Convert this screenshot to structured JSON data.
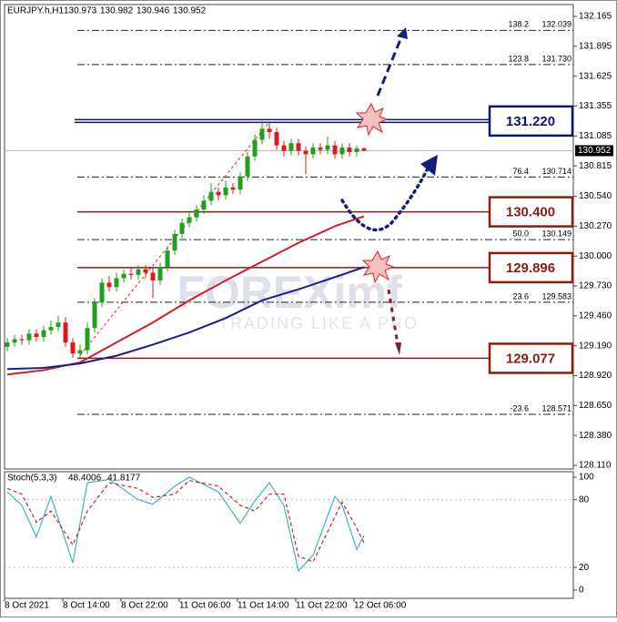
{
  "chart_data": [
    {
      "type": "candlestick",
      "title": "EURJPY.h,H1",
      "categories": [
        "8 Oct 2021",
        null,
        null,
        null,
        null,
        null,
        null,
        null,
        "8 Oct 14:00",
        null,
        null,
        null,
        null,
        null,
        null,
        null,
        "8 Oct 22:00",
        null,
        null,
        null,
        null,
        null,
        null,
        null,
        "11 Oct 06:00",
        null,
        null,
        null,
        null,
        null,
        null,
        null,
        "11 Oct 14:00",
        null,
        null,
        null,
        null,
        null,
        null,
        null,
        "11 Oct 22:00",
        null,
        null,
        null,
        null,
        null,
        null,
        null,
        "12 Oct 06:00",
        null
      ],
      "open": [
        129.18,
        129.22,
        129.25,
        129.24,
        129.3,
        129.27,
        129.33,
        129.36,
        129.4,
        129.22,
        129.12,
        129.15,
        129.35,
        129.58,
        129.76,
        129.72,
        129.8,
        129.84,
        129.83,
        129.88,
        129.85,
        129.78,
        129.9,
        130.05,
        130.2,
        130.3,
        130.35,
        130.42,
        130.5,
        130.58,
        130.55,
        130.62,
        130.6,
        130.72,
        130.9,
        131.05,
        131.15,
        131.12,
        131.0,
        130.95,
        131.02,
        130.95,
        130.92,
        130.98,
        130.96,
        131.0,
        130.92,
        130.98,
        130.94,
        130.973
      ],
      "high": [
        129.26,
        129.29,
        129.29,
        129.34,
        129.34,
        129.37,
        129.42,
        129.46,
        129.45,
        129.26,
        129.2,
        129.4,
        129.62,
        129.8,
        129.82,
        129.85,
        129.88,
        129.89,
        129.92,
        129.92,
        129.89,
        129.94,
        130.09,
        130.24,
        130.34,
        130.4,
        130.46,
        130.55,
        130.66,
        130.62,
        130.68,
        130.66,
        130.76,
        130.94,
        131.1,
        131.22,
        131.2,
        131.16,
        131.04,
        131.06,
        131.06,
        130.99,
        131.02,
        131.02,
        131.08,
        131.04,
        131.02,
        131.02,
        131.0,
        130.982
      ],
      "low": [
        129.14,
        129.18,
        129.2,
        129.2,
        129.23,
        129.23,
        129.29,
        129.32,
        129.18,
        129.08,
        129.08,
        129.11,
        129.31,
        129.54,
        129.68,
        129.68,
        129.76,
        129.79,
        129.79,
        129.8,
        129.62,
        129.74,
        129.86,
        130.01,
        130.16,
        130.26,
        130.31,
        130.38,
        130.46,
        130.5,
        130.51,
        130.56,
        130.56,
        130.68,
        130.86,
        131.01,
        131.06,
        130.96,
        130.9,
        130.91,
        130.91,
        130.74,
        130.88,
        130.92,
        130.92,
        130.88,
        130.88,
        130.9,
        130.9,
        130.946
      ],
      "close": [
        129.22,
        129.25,
        129.24,
        129.3,
        129.27,
        129.33,
        129.36,
        129.4,
        129.22,
        129.12,
        129.15,
        129.35,
        129.58,
        129.76,
        129.72,
        129.8,
        129.84,
        129.83,
        129.88,
        129.85,
        129.78,
        129.9,
        130.05,
        130.2,
        130.3,
        130.35,
        130.42,
        130.5,
        130.58,
        130.55,
        130.62,
        130.6,
        130.72,
        130.9,
        131.05,
        131.15,
        131.12,
        131.0,
        130.95,
        131.02,
        130.95,
        130.92,
        130.98,
        130.96,
        131.0,
        130.92,
        130.98,
        130.94,
        130.973,
        130.952
      ],
      "up_color": "#1fa01f",
      "down_color": "#e01818",
      "moving_averages": [
        {
          "color": "#d81c1c",
          "x": [
            0,
            5,
            10,
            15,
            20,
            25,
            30,
            35,
            40,
            45,
            49
          ],
          "values": [
            128.93,
            128.97,
            129.04,
            129.22,
            129.4,
            129.6,
            129.78,
            129.95,
            130.12,
            130.27,
            130.36
          ]
        },
        {
          "color": "#1a1a9a",
          "x": [
            0,
            5,
            10,
            15,
            20,
            25,
            30,
            35,
            40,
            45,
            49
          ],
          "values": [
            128.98,
            128.99,
            129.03,
            129.1,
            129.2,
            129.31,
            129.44,
            129.6,
            129.7,
            129.81,
            129.9
          ]
        }
      ],
      "fib_levels": [
        {
          "level": "138.2",
          "price": 132.039
        },
        {
          "level": "123.8",
          "price": {
            "value": 131.73,
            "label": "131.730"
          }
        },
        {
          "level": "76.4",
          "price": 130.714
        },
        {
          "level": "50.0",
          "price": 130.149
        },
        {
          "level": "23.6",
          "price": 129.583
        },
        {
          "level": "-23.6",
          "price": 128.571
        }
      ],
      "levels": [
        {
          "value": 131.22,
          "label": "131.220",
          "color": "#0c1670"
        },
        {
          "value": 130.4,
          "label": "130.400",
          "color": "#8a1c10"
        },
        {
          "value": 129.896,
          "label": "129.896",
          "color": "#8a1c10"
        },
        {
          "value": 129.077,
          "label": "129.077",
          "color": "#8a1c10"
        }
      ],
      "watermark": [
        "FOREXimf",
        "TRADING LIKE A PRO"
      ],
      "ylim": [
        128.077,
        132.272
      ],
      "yticks": [
        132.165,
        131.895,
        131.625,
        131.355,
        131.085,
        130.815,
        {
          "value": 130.54,
          "label": "130.540"
        },
        {
          "value": 130.27,
          "label": "130.270"
        },
        {
          "value": 130,
          "label": "130.000"
        },
        {
          "value": 129.73,
          "label": "129.730"
        },
        {
          "value": 129.46,
          "label": "129.460"
        },
        {
          "value": 129.19,
          "label": "129.190"
        },
        {
          "value": 128.92,
          "label": "128.920"
        },
        {
          "value": 128.65,
          "label": "128.650"
        },
        {
          "value": 128.38,
          "label": "128.380"
        },
        {
          "value": 128.11,
          "label": "128.110"
        }
      ]
    },
    {
      "type": "line",
      "title": "Stoch(5,3,3)",
      "series": [
        {
          "color": "#3fb3c6",
          "x": [
            0,
            2,
            4,
            6,
            9,
            11,
            14,
            18,
            20,
            23,
            25,
            29,
            32,
            34,
            36,
            38,
            40,
            42,
            45,
            46,
            48,
            49
          ],
          "values": [
            87,
            75,
            47,
            83,
            24,
            95,
            98,
            80,
            76,
            92,
            100,
            87,
            59,
            79,
            95,
            75,
            17,
            31,
            83,
            75,
            36,
            48.4006
          ]
        },
        {
          "color": "#d02020",
          "dashed": true,
          "x": [
            0,
            2,
            4,
            6,
            9,
            11,
            14,
            18,
            20,
            23,
            25,
            29,
            32,
            34,
            36,
            38,
            40,
            42,
            45,
            46,
            48,
            49
          ],
          "values": [
            90,
            85,
            60,
            70,
            40,
            70,
            95,
            90,
            82,
            85,
            97,
            92,
            75,
            70,
            85,
            85,
            30,
            25,
            65,
            78,
            55,
            41.8177
          ]
        }
      ],
      "ylim": [
        -7.3,
        104.8
      ],
      "yticks": [
        100,
        80,
        20,
        0
      ],
      "grid": [
        80,
        20
      ]
    }
  ]
}
